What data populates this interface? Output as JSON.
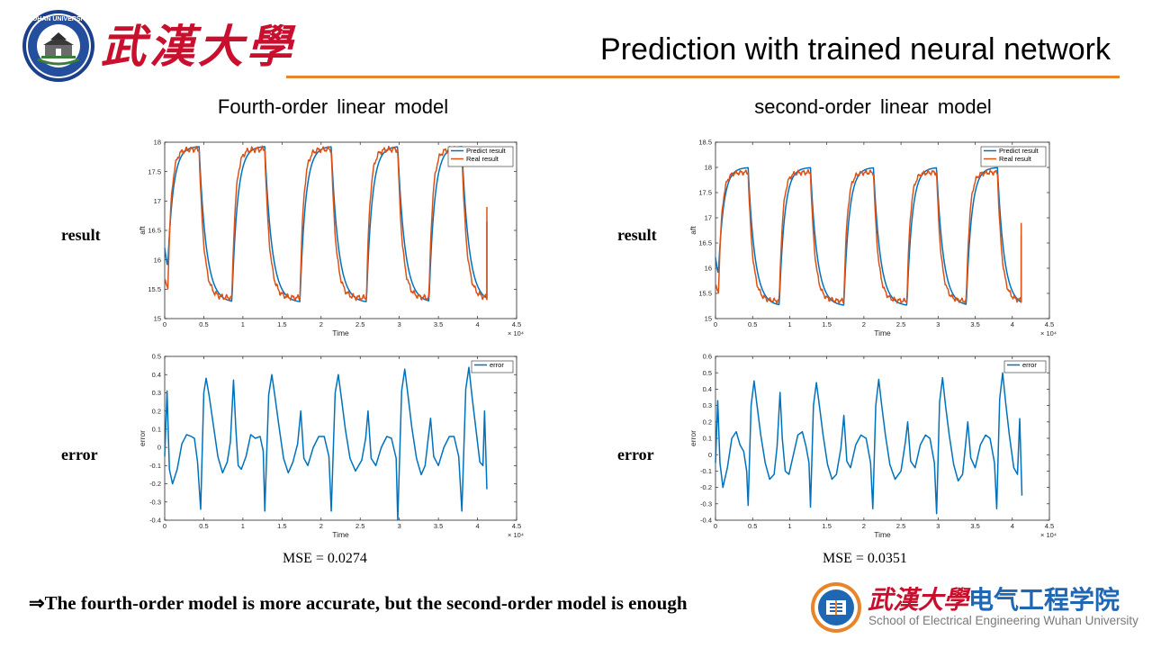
{
  "header": {
    "brand_cn": "武漢大學",
    "title": "Prediction with trained neural network",
    "logo_text": "WUHAN UNIVERSITY"
  },
  "columns": [
    {
      "title": "Fourth-order  linear model",
      "mse": "MSE = 0.0274"
    },
    {
      "title": "second-order  linear model",
      "mse": "MSE = 0.0351"
    }
  ],
  "row_labels": {
    "result": "result",
    "error": "error"
  },
  "conclusion": "⇒The fourth-order model is more accurate, but the second-order model is enough",
  "footer": {
    "cn_red": "武漢大學",
    "cn_blue": "电气工程学院",
    "en": "School of Electrical Engineering Wuhan University"
  },
  "colors": {
    "predict": "#0072bd",
    "real": "#d95319",
    "accent": "#e8852a",
    "brand_red": "#c8102e",
    "footer_blue": "#1f66b3"
  },
  "icons": [
    "university-seal-icon",
    "school-emblem-icon"
  ],
  "chart_data": [
    {
      "id": "fourth-result",
      "type": "line",
      "xlabel": "Time",
      "ylabel": "aft",
      "x_exponent": "× 10⁴",
      "xlim": [
        0,
        4.5
      ],
      "ylim": [
        15,
        18
      ],
      "xticks": [
        0,
        0.5,
        1,
        1.5,
        2,
        2.5,
        3,
        3.5,
        4,
        4.5
      ],
      "yticks": [
        15,
        15.5,
        16,
        16.5,
        17,
        17.5,
        18
      ],
      "legend": "top-right",
      "series": [
        {
          "name": "Predict result",
          "color": "#0072bd",
          "kind": "predict",
          "high": 17.93,
          "low": 15.27,
          "end": 16.65
        },
        {
          "name": "Real result",
          "color": "#d95319",
          "kind": "real",
          "high": 17.88,
          "low": 15.35,
          "end": 16.9
        }
      ],
      "cycles": [
        [
          0.04,
          0.44
        ],
        [
          0.86,
          1.28
        ],
        [
          1.73,
          2.13
        ],
        [
          2.58,
          2.98
        ],
        [
          3.38,
          3.8
        ]
      ],
      "x_end": 4.12
    },
    {
      "id": "second-result",
      "type": "line",
      "xlabel": "Time",
      "ylabel": "aft",
      "x_exponent": "× 10⁴",
      "xlim": [
        0,
        4.5
      ],
      "ylim": [
        15,
        18.5
      ],
      "xticks": [
        0,
        0.5,
        1,
        1.5,
        2,
        2.5,
        3,
        3.5,
        4,
        4.5
      ],
      "yticks": [
        15,
        15.5,
        16,
        16.5,
        17,
        17.5,
        18,
        18.5
      ],
      "legend": "top-right",
      "series": [
        {
          "name": "Predict result",
          "color": "#0072bd",
          "kind": "predict",
          "high": 18.0,
          "low": 15.25,
          "end": 16.65
        },
        {
          "name": "Real result",
          "color": "#d95319",
          "kind": "real",
          "high": 17.9,
          "low": 15.35,
          "end": 16.9
        }
      ],
      "cycles": [
        [
          0.04,
          0.44
        ],
        [
          0.86,
          1.28
        ],
        [
          1.73,
          2.13
        ],
        [
          2.58,
          2.98
        ],
        [
          3.38,
          3.8
        ]
      ],
      "x_end": 4.12
    },
    {
      "id": "fourth-error",
      "type": "line",
      "xlabel": "Time",
      "ylabel": "error",
      "x_exponent": "× 10⁴",
      "xlim": [
        0,
        4.5
      ],
      "ylim": [
        -0.4,
        0.5
      ],
      "xticks": [
        0,
        0.5,
        1,
        1.5,
        2,
        2.5,
        3,
        3.5,
        4,
        4.5
      ],
      "yticks": [
        -0.4,
        -0.3,
        -0.2,
        -0.1,
        0,
        0.1,
        0.2,
        0.3,
        0.4,
        0.5
      ],
      "legend": "top-right",
      "series": [
        {
          "name": "error",
          "color": "#0072bd",
          "kind": "error",
          "points": [
            [
              0,
              -0.05
            ],
            [
              0.03,
              0.31
            ],
            [
              0.06,
              -0.12
            ],
            [
              0.1,
              -0.2
            ],
            [
              0.16,
              -0.12
            ],
            [
              0.22,
              0.02
            ],
            [
              0.28,
              0.07
            ],
            [
              0.34,
              0.06
            ],
            [
              0.38,
              0.05
            ],
            [
              0.42,
              -0.08
            ],
            [
              0.46,
              -0.34
            ],
            [
              0.5,
              0.3
            ],
            [
              0.53,
              0.38
            ],
            [
              0.57,
              0.28
            ],
            [
              0.62,
              0.13
            ],
            [
              0.68,
              -0.05
            ],
            [
              0.74,
              -0.14
            ],
            [
              0.8,
              -0.08
            ],
            [
              0.84,
              0.03
            ],
            [
              0.88,
              0.37
            ],
            [
              0.91,
              0.1
            ],
            [
              0.94,
              -0.1
            ],
            [
              0.98,
              -0.12
            ],
            [
              1.04,
              -0.05
            ],
            [
              1.1,
              0.07
            ],
            [
              1.16,
              0.05
            ],
            [
              1.22,
              0.06
            ],
            [
              1.26,
              -0.02
            ],
            [
              1.28,
              -0.35
            ],
            [
              1.33,
              0.29
            ],
            [
              1.37,
              0.4
            ],
            [
              1.41,
              0.28
            ],
            [
              1.46,
              0.12
            ],
            [
              1.52,
              -0.06
            ],
            [
              1.58,
              -0.14
            ],
            [
              1.64,
              -0.08
            ],
            [
              1.7,
              0.02
            ],
            [
              1.74,
              0.2
            ],
            [
              1.78,
              -0.06
            ],
            [
              1.83,
              -0.1
            ],
            [
              1.9,
              0.0
            ],
            [
              1.97,
              0.06
            ],
            [
              2.04,
              0.06
            ],
            [
              2.1,
              -0.05
            ],
            [
              2.13,
              -0.35
            ],
            [
              2.18,
              0.3
            ],
            [
              2.22,
              0.4
            ],
            [
              2.26,
              0.27
            ],
            [
              2.31,
              0.1
            ],
            [
              2.37,
              -0.06
            ],
            [
              2.44,
              -0.13
            ],
            [
              2.52,
              -0.07
            ],
            [
              2.57,
              0.05
            ],
            [
              2.6,
              0.2
            ],
            [
              2.64,
              -0.06
            ],
            [
              2.7,
              -0.1
            ],
            [
              2.77,
              0.0
            ],
            [
              2.84,
              0.06
            ],
            [
              2.9,
              0.05
            ],
            [
              2.96,
              -0.06
            ],
            [
              2.98,
              -0.4
            ],
            [
              3.03,
              0.31
            ],
            [
              3.07,
              0.43
            ],
            [
              3.11,
              0.29
            ],
            [
              3.16,
              0.11
            ],
            [
              3.22,
              -0.06
            ],
            [
              3.28,
              -0.15
            ],
            [
              3.33,
              -0.1
            ],
            [
              3.37,
              0.05
            ],
            [
              3.4,
              0.16
            ],
            [
              3.44,
              -0.05
            ],
            [
              3.5,
              -0.1
            ],
            [
              3.57,
              0.0
            ],
            [
              3.64,
              0.06
            ],
            [
              3.7,
              0.06
            ],
            [
              3.76,
              -0.05
            ],
            [
              3.8,
              -0.35
            ],
            [
              3.85,
              0.32
            ],
            [
              3.89,
              0.44
            ],
            [
              3.93,
              0.28
            ],
            [
              3.98,
              0.1
            ],
            [
              4.03,
              -0.08
            ],
            [
              4.07,
              -0.1
            ],
            [
              4.09,
              0.2
            ],
            [
              4.12,
              -0.23
            ]
          ]
        }
      ]
    },
    {
      "id": "second-error",
      "type": "line",
      "xlabel": "Time",
      "ylabel": "error",
      "x_exponent": "× 10⁴",
      "xlim": [
        0,
        4.5
      ],
      "ylim": [
        -0.4,
        0.6
      ],
      "xticks": [
        0,
        0.5,
        1,
        1.5,
        2,
        2.5,
        3,
        3.5,
        4,
        4.5
      ],
      "yticks": [
        -0.4,
        -0.3,
        -0.2,
        -0.1,
        0,
        0.1,
        0.2,
        0.3,
        0.4,
        0.5,
        0.6
      ],
      "legend": "top-right",
      "series": [
        {
          "name": "error",
          "color": "#0072bd",
          "kind": "error",
          "points": [
            [
              0,
              -0.05
            ],
            [
              0.03,
              0.33
            ],
            [
              0.06,
              -0.05
            ],
            [
              0.1,
              -0.2
            ],
            [
              0.16,
              -0.08
            ],
            [
              0.22,
              0.1
            ],
            [
              0.28,
              0.14
            ],
            [
              0.33,
              0.06
            ],
            [
              0.38,
              0.02
            ],
            [
              0.42,
              -0.1
            ],
            [
              0.44,
              -0.31
            ],
            [
              0.48,
              0.3
            ],
            [
              0.52,
              0.45
            ],
            [
              0.56,
              0.3
            ],
            [
              0.61,
              0.12
            ],
            [
              0.67,
              -0.05
            ],
            [
              0.73,
              -0.15
            ],
            [
              0.79,
              -0.12
            ],
            [
              0.83,
              0.05
            ],
            [
              0.87,
              0.38
            ],
            [
              0.9,
              0.1
            ],
            [
              0.94,
              -0.1
            ],
            [
              0.99,
              -0.12
            ],
            [
              1.05,
              0.0
            ],
            [
              1.11,
              0.12
            ],
            [
              1.17,
              0.14
            ],
            [
              1.22,
              0.05
            ],
            [
              1.26,
              -0.05
            ],
            [
              1.28,
              -0.32
            ],
            [
              1.32,
              0.3
            ],
            [
              1.36,
              0.44
            ],
            [
              1.4,
              0.3
            ],
            [
              1.45,
              0.12
            ],
            [
              1.51,
              -0.06
            ],
            [
              1.57,
              -0.15
            ],
            [
              1.63,
              -0.12
            ],
            [
              1.69,
              0.04
            ],
            [
              1.73,
              0.24
            ],
            [
              1.77,
              -0.04
            ],
            [
              1.82,
              -0.08
            ],
            [
              1.89,
              0.06
            ],
            [
              1.96,
              0.12
            ],
            [
              2.03,
              0.1
            ],
            [
              2.09,
              -0.05
            ],
            [
              2.12,
              -0.33
            ],
            [
              2.16,
              0.3
            ],
            [
              2.2,
              0.46
            ],
            [
              2.24,
              0.3
            ],
            [
              2.29,
              0.12
            ],
            [
              2.35,
              -0.06
            ],
            [
              2.42,
              -0.15
            ],
            [
              2.5,
              -0.1
            ],
            [
              2.56,
              0.08
            ],
            [
              2.59,
              0.2
            ],
            [
              2.63,
              -0.04
            ],
            [
              2.69,
              -0.08
            ],
            [
              2.76,
              0.06
            ],
            [
              2.83,
              0.12
            ],
            [
              2.89,
              0.1
            ],
            [
              2.95,
              -0.05
            ],
            [
              2.98,
              -0.36
            ],
            [
              3.02,
              0.32
            ],
            [
              3.06,
              0.47
            ],
            [
              3.1,
              0.3
            ],
            [
              3.15,
              0.12
            ],
            [
              3.21,
              -0.06
            ],
            [
              3.27,
              -0.16
            ],
            [
              3.33,
              -0.12
            ],
            [
              3.37,
              0.06
            ],
            [
              3.4,
              0.2
            ],
            [
              3.44,
              -0.02
            ],
            [
              3.5,
              -0.08
            ],
            [
              3.57,
              0.06
            ],
            [
              3.64,
              0.12
            ],
            [
              3.7,
              0.1
            ],
            [
              3.76,
              -0.05
            ],
            [
              3.79,
              -0.33
            ],
            [
              3.83,
              0.34
            ],
            [
              3.87,
              0.5
            ],
            [
              3.91,
              0.32
            ],
            [
              3.96,
              0.12
            ],
            [
              4.02,
              -0.08
            ],
            [
              4.07,
              -0.12
            ],
            [
              4.1,
              0.22
            ],
            [
              4.13,
              -0.25
            ]
          ]
        }
      ]
    }
  ]
}
